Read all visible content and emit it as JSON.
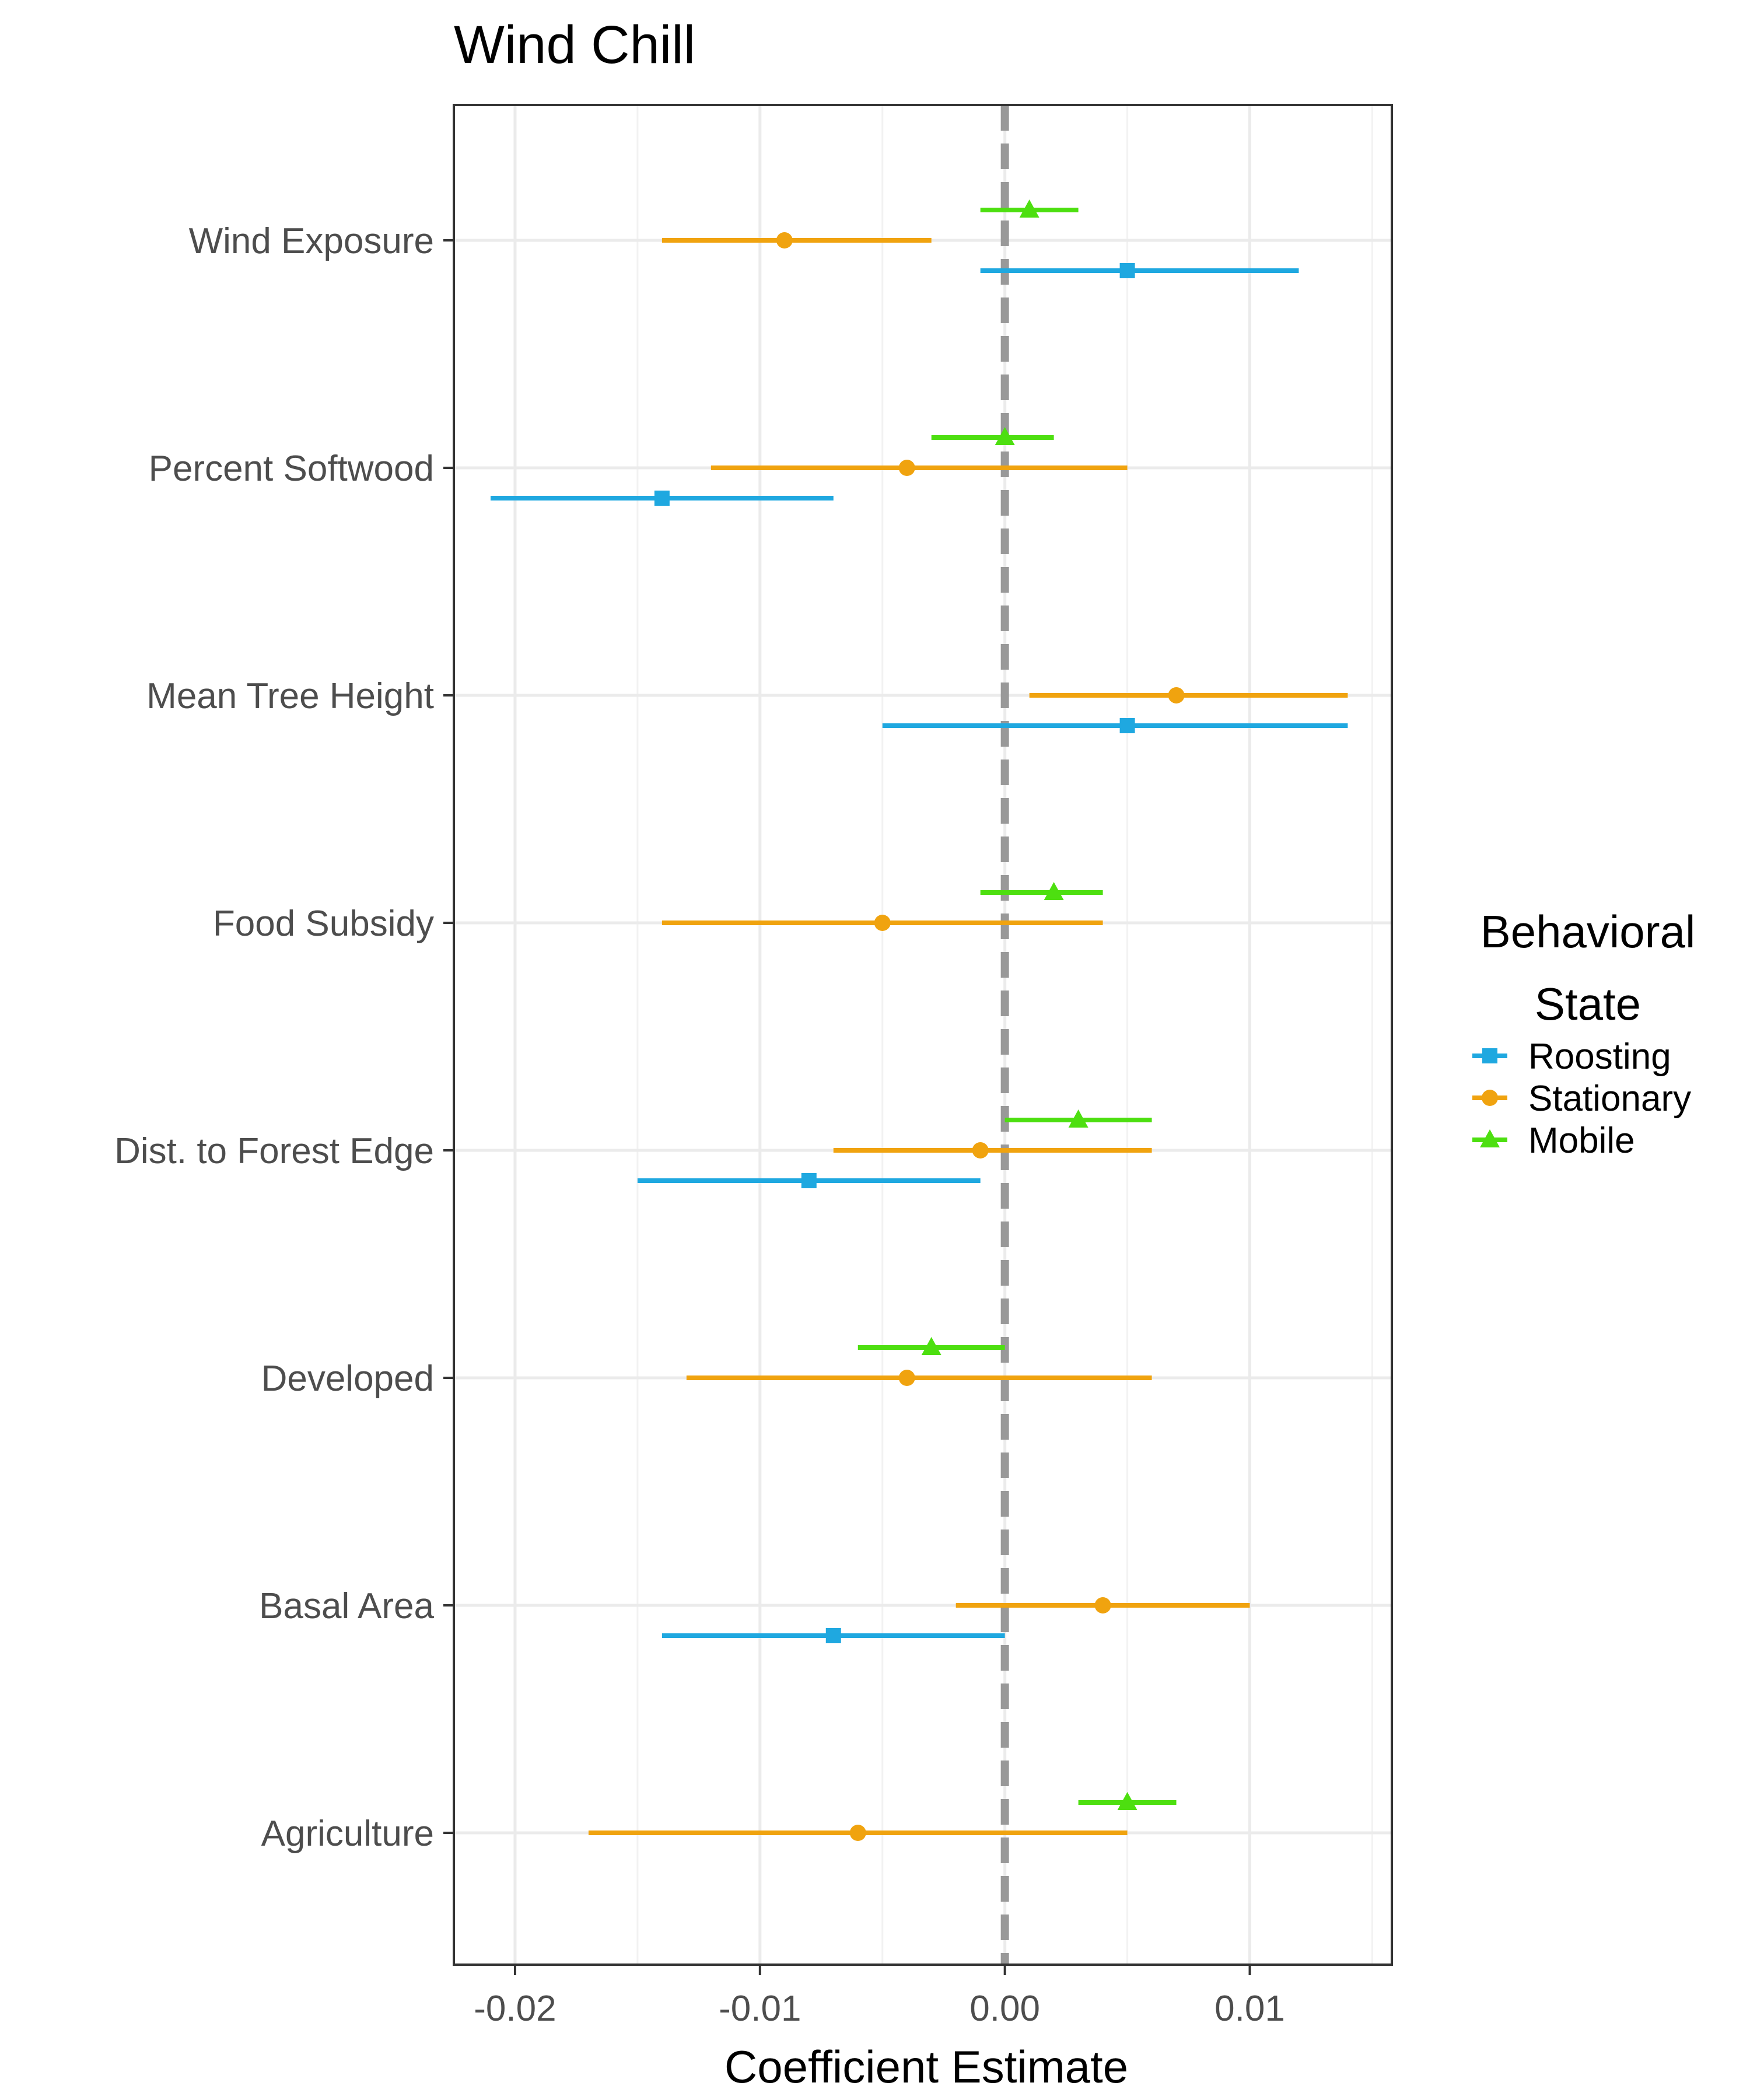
{
  "chart_data": {
    "type": "scatter",
    "subtype": "coefficient-plot-with-horizontal-error-bars",
    "title": "Wind Chill",
    "xlabel": "Coefficient Estimate",
    "ylabel": "",
    "xlim": [
      -0.0225,
      0.0158
    ],
    "x_ticks": [
      -0.02,
      -0.01,
      0.0,
      0.01
    ],
    "x_tick_labels": [
      "-0.02",
      "-0.01",
      "0.00",
      "0.01"
    ],
    "categories": [
      "Wind Exposure",
      "Percent Softwood",
      "Mean Tree Height",
      "Food Subsidy",
      "Dist. to Forest Edge",
      "Developed",
      "Basal Area",
      "Agriculture"
    ],
    "reference_line": {
      "x": 0,
      "style": "dashed",
      "color": "#999999"
    },
    "grid": true,
    "legend": {
      "title_lines": [
        "Behavioral",
        "State"
      ],
      "position": "right"
    },
    "series": [
      {
        "name": "Roosting",
        "color": "#1fa8e0",
        "marker": "square",
        "points": [
          {
            "category": "Wind Exposure",
            "estimate": 0.005,
            "low": -0.001,
            "high": 0.012
          },
          {
            "category": "Percent Softwood",
            "estimate": -0.014,
            "low": -0.021,
            "high": -0.007
          },
          {
            "category": "Mean Tree Height",
            "estimate": 0.005,
            "low": -0.005,
            "high": 0.014
          },
          {
            "category": "Dist. to Forest Edge",
            "estimate": -0.008,
            "low": -0.015,
            "high": -0.001
          },
          {
            "category": "Basal Area",
            "estimate": -0.007,
            "low": -0.014,
            "high": 0.0
          }
        ]
      },
      {
        "name": "Stationary",
        "color": "#f0a30f",
        "marker": "circle",
        "points": [
          {
            "category": "Wind Exposure",
            "estimate": -0.009,
            "low": -0.014,
            "high": -0.003
          },
          {
            "category": "Percent Softwood",
            "estimate": -0.004,
            "low": -0.012,
            "high": 0.005
          },
          {
            "category": "Mean Tree Height",
            "estimate": 0.007,
            "low": 0.001,
            "high": 0.014
          },
          {
            "category": "Food Subsidy",
            "estimate": -0.005,
            "low": -0.014,
            "high": 0.004
          },
          {
            "category": "Dist. to Forest Edge",
            "estimate": -0.001,
            "low": -0.007,
            "high": 0.006
          },
          {
            "category": "Developed",
            "estimate": -0.004,
            "low": -0.013,
            "high": 0.006
          },
          {
            "category": "Basal Area",
            "estimate": 0.004,
            "low": -0.002,
            "high": 0.01
          },
          {
            "category": "Agriculture",
            "estimate": -0.006,
            "low": -0.017,
            "high": 0.005
          }
        ]
      },
      {
        "name": "Mobile",
        "color": "#4ddf10",
        "marker": "triangle",
        "points": [
          {
            "category": "Wind Exposure",
            "estimate": 0.001,
            "low": -0.001,
            "high": 0.003
          },
          {
            "category": "Percent Softwood",
            "estimate": 0.0,
            "low": -0.003,
            "high": 0.002
          },
          {
            "category": "Food Subsidy",
            "estimate": 0.002,
            "low": -0.001,
            "high": 0.004
          },
          {
            "category": "Dist. to Forest Edge",
            "estimate": 0.003,
            "low": 0.0,
            "high": 0.006
          },
          {
            "category": "Developed",
            "estimate": -0.003,
            "low": -0.006,
            "high": 0.0
          },
          {
            "category": "Agriculture",
            "estimate": 0.005,
            "low": 0.003,
            "high": 0.007
          }
        ]
      }
    ]
  }
}
